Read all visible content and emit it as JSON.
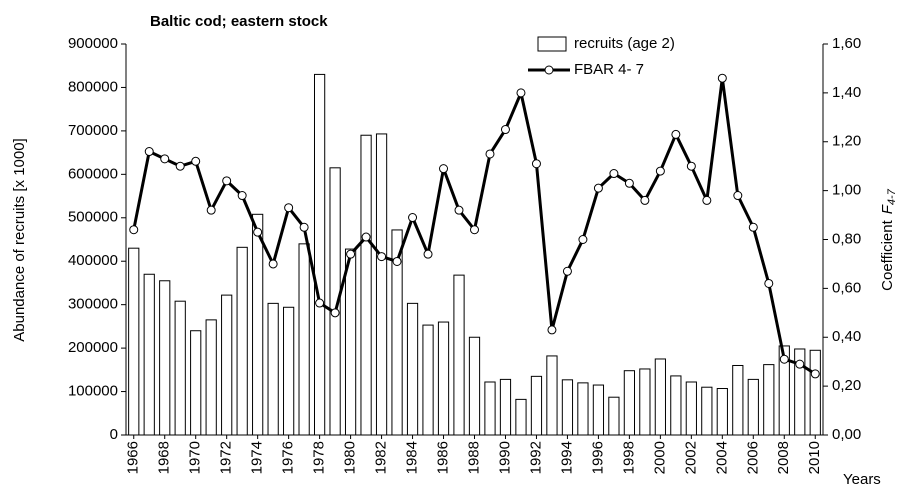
{
  "chart_data": {
    "type": "bar-line",
    "title": "Baltic cod; eastern stock",
    "ylabel": "Abundance of recruits [x 1000]",
    "y2label": "Coefficient",
    "y2label_symbol": "F",
    "y2label_sub": "4-7",
    "xlabel": "Years",
    "categories": [
      "1966",
      null,
      "1968",
      null,
      "1970",
      null,
      "1972",
      null,
      "1974",
      null,
      "1976",
      null,
      "1978",
      null,
      "1980",
      null,
      "1982",
      null,
      "1984",
      null,
      "1986",
      null,
      "1988",
      null,
      "1990",
      null,
      "1992",
      null,
      "1994",
      null,
      "1996",
      null,
      "1998",
      null,
      "2000",
      null,
      "2002",
      null,
      "2004",
      null,
      "2006",
      null,
      "2008",
      null,
      "2010"
    ],
    "series": [
      {
        "name": "recruits (age 2)",
        "type": "bar",
        "color": "#ffffff",
        "values": [
          430000,
          370000,
          355000,
          308000,
          240000,
          265000,
          322000,
          432000,
          508000,
          303000,
          294000,
          440000,
          830000,
          615000,
          428000,
          690000,
          693000,
          472000,
          303000,
          253000,
          260000,
          368000,
          225000,
          122000,
          128000,
          82000,
          135000,
          182000,
          127000,
          120000,
          115000,
          87000,
          148000,
          152000,
          175000,
          136000,
          122000,
          110000,
          107000,
          160000,
          128000,
          162000,
          205000,
          198000,
          195000
        ]
      },
      {
        "name": "FBAR  4- 7",
        "type": "line",
        "axis": "y2",
        "color": "#000000",
        "values": [
          0.84,
          1.16,
          1.13,
          1.1,
          1.12,
          0.92,
          1.04,
          0.98,
          0.83,
          0.7,
          0.93,
          0.85,
          0.54,
          0.5,
          0.74,
          0.81,
          0.73,
          0.71,
          0.89,
          0.74,
          1.09,
          0.92,
          0.84,
          1.15,
          1.25,
          1.4,
          1.11,
          0.43,
          0.67,
          0.8,
          1.01,
          1.07,
          1.03,
          0.96,
          1.08,
          1.23,
          1.1,
          0.96,
          1.46,
          0.98,
          0.85,
          0.62,
          0.31,
          0.29,
          0.25
        ]
      }
    ],
    "ylim": [
      0,
      900000
    ],
    "yticks": [
      0,
      100000,
      200000,
      300000,
      400000,
      500000,
      600000,
      700000,
      800000,
      900000
    ],
    "y2lim": [
      0,
      1.6
    ],
    "y2ticks": [
      {
        "value": 0,
        "label": "0,00"
      },
      {
        "value": 0.2,
        "label": "0,20"
      },
      {
        "value": 0.4,
        "label": "0,40"
      },
      {
        "value": 0.6,
        "label": "0,60"
      },
      {
        "value": 0.8,
        "label": "0,80"
      },
      {
        "value": 1.0,
        "label": "1,00"
      },
      {
        "value": 1.2,
        "label": "1,20"
      },
      {
        "value": 1.4,
        "label": "1,40"
      },
      {
        "value": 1.6,
        "label": "1,60"
      }
    ],
    "grid": false,
    "legend": "top"
  }
}
